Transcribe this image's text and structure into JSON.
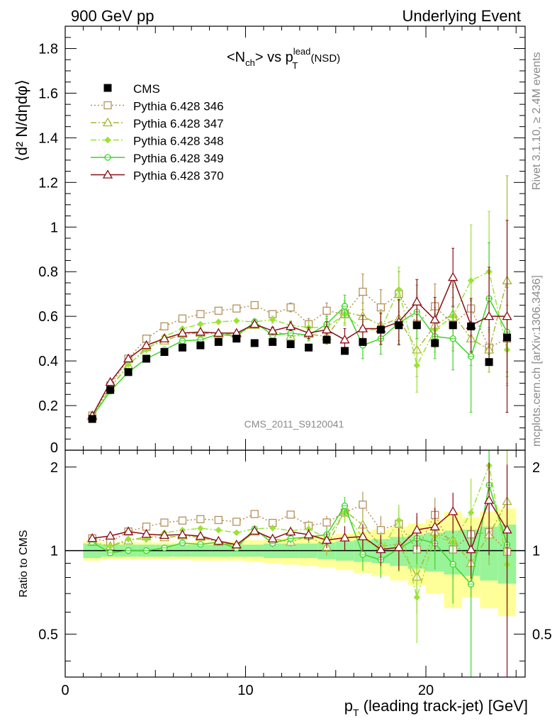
{
  "header": {
    "left": "900 GeV pp",
    "right": "Underlying Event"
  },
  "plot_title": {
    "main": "<N",
    "sub1": "ch",
    "mid": "> vs p",
    "sup": "lead",
    "sub2": "T",
    "tail": " (NSD)"
  },
  "side_labels": {
    "rivet": "Rivet 3.1.10, ≥ 2.4M events",
    "mcplots": "mcplots.cern.ch [arXiv:1306.3436]"
  },
  "analysis_tag": "CMS_2011_S9120041",
  "axes": {
    "ylabel_main": "⟨d² N/dηdφ⟩",
    "ylabel_ratio": "Ratio to CMS",
    "xlabel": "p_T (leading track-jet) [GeV]"
  },
  "chart_data": {
    "type": "scatter",
    "xlim": [
      0,
      25.5
    ],
    "ylim": [
      0,
      1.9
    ],
    "ratio_ylim": [
      0.35,
      2.3
    ],
    "x_ticks": [
      0,
      10,
      20
    ],
    "y_ticks": [
      0.2,
      0.4,
      0.6,
      0.8,
      1,
      1.2,
      1.4,
      1.6,
      1.8
    ],
    "ratio_ticks": [
      0.5,
      1,
      2
    ],
    "x": [
      1.5,
      2.5,
      3.5,
      4.5,
      5.5,
      6.5,
      7.5,
      8.5,
      9.5,
      10.5,
      11.5,
      12.5,
      13.5,
      14.5,
      15.5,
      16.5,
      17.5,
      18.5,
      19.5,
      20.5,
      21.5,
      22.5,
      23.5,
      24.5
    ],
    "data": {
      "name": "CMS",
      "y": [
        0.14,
        0.27,
        0.35,
        0.41,
        0.44,
        0.46,
        0.47,
        0.485,
        0.5,
        0.48,
        0.485,
        0.475,
        0.46,
        0.495,
        0.445,
        0.485,
        0.54,
        0.56,
        0.56,
        0.48,
        0.56,
        0.555,
        0.395,
        0.505
      ],
      "ratio_band_stat": [
        0.06,
        0.05,
        0.05,
        0.05,
        0.05,
        0.05,
        0.05,
        0.05,
        0.05,
        0.05,
        0.06,
        0.06,
        0.06,
        0.07,
        0.08,
        0.09,
        0.1,
        0.12,
        0.14,
        0.16,
        0.18,
        0.19,
        0.22,
        0.24
      ],
      "ratio_band_total": [
        0.08,
        0.07,
        0.07,
        0.07,
        0.07,
        0.07,
        0.08,
        0.08,
        0.08,
        0.09,
        0.1,
        0.11,
        0.12,
        0.13,
        0.15,
        0.17,
        0.19,
        0.22,
        0.25,
        0.3,
        0.38,
        0.32,
        0.38,
        0.42
      ]
    },
    "series": [
      {
        "name": "Pythia 6.428 346",
        "color": "#b5915a",
        "marker": "square",
        "dash": "2,3",
        "y": [
          0.155,
          0.29,
          0.41,
          0.5,
          0.555,
          0.59,
          0.61,
          0.625,
          0.635,
          0.65,
          0.61,
          0.64,
          0.565,
          0.625,
          0.61,
          0.71,
          0.64,
          0.7,
          0.565,
          0.645,
          0.565,
          0.635,
          0.46,
          0.5
        ],
        "err": [
          0.003,
          0.004,
          0.005,
          0.006,
          0.007,
          0.008,
          0.009,
          0.01,
          0.012,
          0.014,
          0.016,
          0.02,
          0.025,
          0.035,
          0.05,
          0.08,
          0.08,
          0.1,
          0.12,
          0.1,
          0.12,
          0.12,
          0.08,
          0.15
        ]
      },
      {
        "name": "Pythia 6.428 347",
        "color": "#a9b634",
        "marker": "triangle",
        "dash": "8,3,2,3",
        "y": [
          0.15,
          0.28,
          0.38,
          0.46,
          0.49,
          0.52,
          0.525,
          0.52,
          0.52,
          0.56,
          0.535,
          0.51,
          0.52,
          0.51,
          0.62,
          0.6,
          0.56,
          0.59,
          0.45,
          0.56,
          0.61,
          0.5,
          0.45,
          0.76
        ],
        "err": [
          0.003,
          0.004,
          0.005,
          0.006,
          0.007,
          0.008,
          0.009,
          0.01,
          0.012,
          0.014,
          0.016,
          0.02,
          0.025,
          0.035,
          0.05,
          0.06,
          0.07,
          0.1,
          0.12,
          0.1,
          0.12,
          0.12,
          0.1,
          0.47
        ]
      },
      {
        "name": "Pythia 6.428 348",
        "color": "#9be235",
        "marker": "diamond",
        "dash": "8,3,2,3",
        "y": [
          0.15,
          0.28,
          0.385,
          0.45,
          0.51,
          0.545,
          0.565,
          0.575,
          0.58,
          0.575,
          0.585,
          0.56,
          0.55,
          0.55,
          0.61,
          0.54,
          0.54,
          0.72,
          0.38,
          0.54,
          0.6,
          0.76,
          0.8,
          0.45
        ],
        "err": [
          0.003,
          0.004,
          0.005,
          0.006,
          0.007,
          0.008,
          0.009,
          0.01,
          0.012,
          0.014,
          0.016,
          0.02,
          0.025,
          0.035,
          0.05,
          0.06,
          0.07,
          0.1,
          0.12,
          0.1,
          0.14,
          0.25,
          0.27,
          0.15
        ]
      },
      {
        "name": "Pythia 6.428 349",
        "color": "#3ed42a",
        "marker": "circle",
        "dash": "",
        "y": [
          0.15,
          0.265,
          0.35,
          0.41,
          0.45,
          0.49,
          0.495,
          0.52,
          0.51,
          0.575,
          0.515,
          0.525,
          0.515,
          0.565,
          0.645,
          0.47,
          0.5,
          0.57,
          0.62,
          0.51,
          0.5,
          0.42,
          0.68,
          0.53
        ],
        "err": [
          0.003,
          0.004,
          0.005,
          0.006,
          0.007,
          0.008,
          0.009,
          0.01,
          0.012,
          0.014,
          0.016,
          0.02,
          0.025,
          0.035,
          0.05,
          0.06,
          0.07,
          0.1,
          0.12,
          0.1,
          0.14,
          0.25,
          0.25,
          0.2
        ]
      },
      {
        "name": "Pythia 6.428 370",
        "color": "#8b0c16",
        "marker": "triangle",
        "dash": "",
        "y": [
          0.155,
          0.305,
          0.41,
          0.47,
          0.5,
          0.525,
          0.53,
          0.525,
          0.525,
          0.565,
          0.535,
          0.555,
          0.525,
          0.54,
          0.495,
          0.545,
          0.545,
          0.575,
          0.665,
          0.585,
          0.775,
          0.56,
          0.6,
          0.6
        ],
        "err": [
          0.003,
          0.004,
          0.005,
          0.006,
          0.007,
          0.008,
          0.009,
          0.01,
          0.012,
          0.014,
          0.016,
          0.02,
          0.025,
          0.035,
          0.05,
          0.06,
          0.07,
          0.1,
          0.1,
          0.1,
          0.13,
          0.12,
          0.22,
          0.43
        ]
      }
    ]
  }
}
